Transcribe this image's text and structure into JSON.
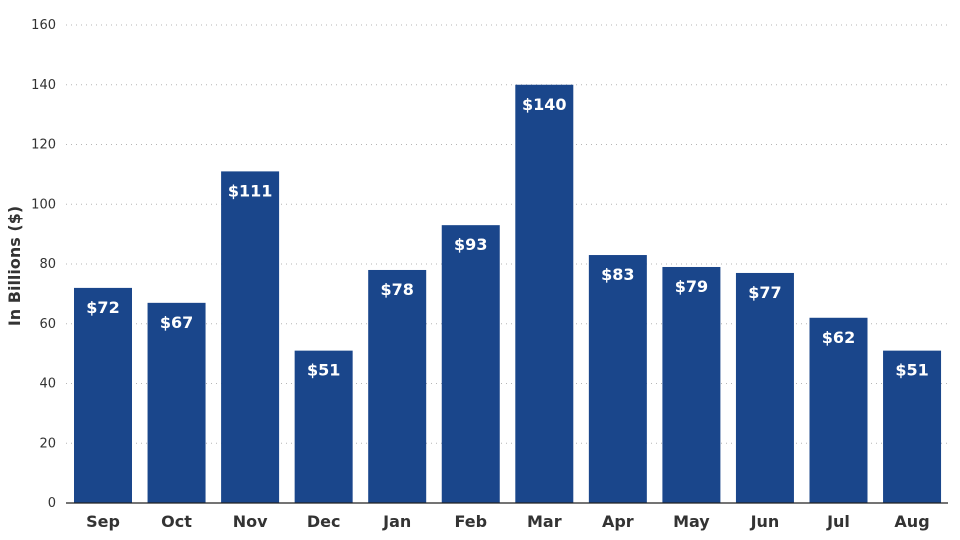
{
  "chart_data": {
    "type": "bar",
    "categories": [
      "Sep",
      "Oct",
      "Nov",
      "Dec",
      "Jan",
      "Feb",
      "Mar",
      "Apr",
      "May",
      "Jun",
      "Jul",
      "Aug"
    ],
    "values": [
      72,
      67,
      111,
      51,
      78,
      93,
      140,
      83,
      79,
      77,
      62,
      51
    ],
    "data_labels": [
      "$72",
      "$67",
      "$111",
      "$51",
      "$78",
      "$93",
      "$140",
      "$83",
      "$79",
      "$77",
      "$62",
      "$51"
    ],
    "ylabel": "In Billions ($)",
    "ylim": [
      0,
      160
    ],
    "yticks": [
      0,
      20,
      40,
      60,
      80,
      100,
      120,
      140,
      160
    ],
    "grid": true,
    "bar_color": "#1a468b"
  }
}
